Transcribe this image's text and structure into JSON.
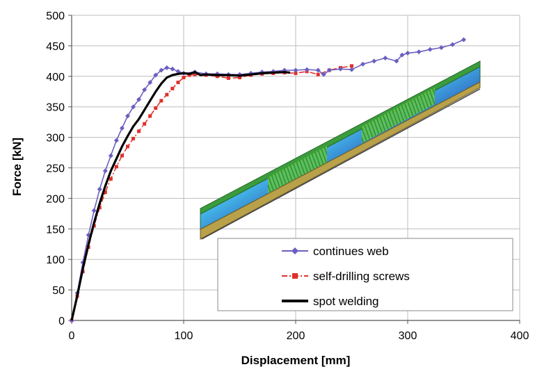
{
  "chart_data": {
    "type": "line",
    "xlabel": "Displacement [mm]",
    "ylabel": "Force [kN]",
    "xlim": [
      0,
      400
    ],
    "ylim": [
      0,
      500
    ],
    "xticks": [
      "0",
      "100",
      "200",
      "300",
      "400"
    ],
    "yticks": [
      "0",
      "50",
      "100",
      "150",
      "200",
      "250",
      "300",
      "350",
      "400",
      "450",
      "500"
    ],
    "grid": true,
    "legend_position": "bottom-right",
    "series": [
      {
        "name": "continues web",
        "color": "#6a5fc1",
        "marker": "diamond",
        "x": [
          0,
          5,
          10,
          15,
          20,
          25,
          30,
          35,
          40,
          45,
          50,
          55,
          60,
          65,
          70,
          75,
          80,
          85,
          90,
          95,
          100,
          110,
          120,
          130,
          140,
          150,
          160,
          170,
          180,
          190,
          200,
          210,
          220,
          225,
          230,
          240,
          250,
          260,
          270,
          280,
          290,
          295,
          300,
          310,
          320,
          330,
          340,
          350
        ],
        "y": [
          0,
          45,
          95,
          140,
          180,
          215,
          245,
          270,
          295,
          315,
          335,
          350,
          362,
          378,
          390,
          402,
          410,
          414,
          412,
          408,
          405,
          407,
          404,
          404,
          403,
          403,
          405,
          407,
          408,
          410,
          410,
          411,
          410,
          403,
          410,
          412,
          411,
          420,
          425,
          430,
          425,
          435,
          438,
          440,
          444,
          447,
          452,
          460
        ]
      },
      {
        "name": "self-drilling screws",
        "color": "#e0302a",
        "marker": "square",
        "x": [
          0,
          5,
          10,
          15,
          20,
          25,
          30,
          35,
          40,
          45,
          50,
          55,
          60,
          65,
          70,
          75,
          80,
          85,
          90,
          95,
          100,
          105,
          110,
          120,
          130,
          140,
          150,
          160,
          170,
          180,
          190,
          200,
          210,
          220,
          230,
          240,
          250
        ],
        "y": [
          0,
          40,
          80,
          120,
          155,
          185,
          210,
          232,
          252,
          270,
          285,
          298,
          310,
          322,
          335,
          348,
          360,
          370,
          380,
          390,
          398,
          402,
          403,
          402,
          400,
          397,
          398,
          402,
          404,
          405,
          406,
          405,
          408,
          403,
          410,
          414,
          417
        ]
      },
      {
        "name": "spot welding",
        "color": "#000000",
        "marker": "none",
        "x": [
          0,
          5,
          10,
          15,
          20,
          25,
          30,
          35,
          40,
          45,
          50,
          55,
          60,
          65,
          70,
          75,
          80,
          85,
          90,
          95,
          100,
          105,
          110,
          115,
          120,
          130,
          140,
          150,
          160,
          170,
          180,
          190,
          195
        ],
        "y": [
          0,
          40,
          85,
          125,
          160,
          192,
          220,
          245,
          265,
          285,
          302,
          318,
          330,
          345,
          360,
          375,
          388,
          398,
          402,
          404,
          405,
          404,
          407,
          402,
          403,
          402,
          402,
          401,
          403,
          405,
          406,
          407,
          406
        ]
      }
    ]
  },
  "inset": {
    "description_icon": "fe-model-beam-icon"
  }
}
